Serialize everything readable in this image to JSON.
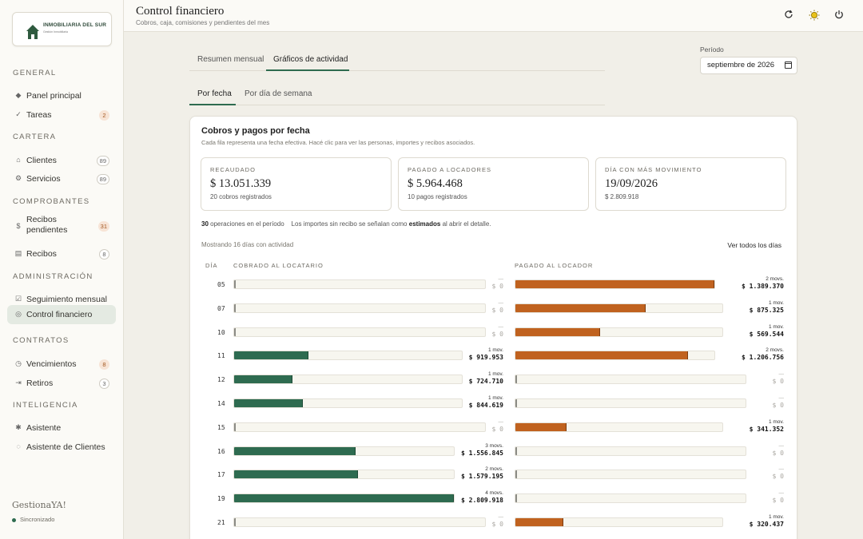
{
  "brand": {
    "logo_title": "INMOBILIARIA DEL SUR",
    "logo_subtitle": "Gestión Inmobiliaria",
    "footer_name": "GestionaYA!",
    "sync_status": "Sincronizado",
    "accent": "#2e6b4f"
  },
  "sidebar": {
    "sections": [
      {
        "title": "GENERAL",
        "items": [
          {
            "label": "Panel principal",
            "icon": "diamond-icon"
          },
          {
            "label": "Tareas",
            "icon": "check-icon",
            "badge": "2",
            "badge_style": "warn"
          }
        ]
      },
      {
        "title": "CARTERA",
        "items": [
          {
            "label": "Clientes",
            "icon": "home-icon",
            "badge": "89",
            "badge_style": "neutral"
          },
          {
            "label": "Servicios",
            "icon": "gear-icon",
            "badge": "89",
            "badge_style": "neutral"
          }
        ]
      },
      {
        "title": "COMPROBANTES",
        "items": [
          {
            "label": "Recibos pendientes",
            "icon": "dollar-icon",
            "badge": "31",
            "badge_style": "warn"
          },
          {
            "label": "Recibos",
            "icon": "receipt-icon",
            "badge": "8",
            "badge_style": "neutral"
          }
        ]
      },
      {
        "title": "ADMINISTRACIÓN",
        "items": [
          {
            "label": "Seguimiento mensual",
            "icon": "checkbox-icon"
          },
          {
            "label": "Control financiero",
            "icon": "target-icon",
            "active": true
          }
        ]
      },
      {
        "title": "CONTRATOS",
        "items": [
          {
            "label": "Vencimientos",
            "icon": "clock-icon",
            "badge": "8",
            "badge_style": "warn"
          },
          {
            "label": "Retiros",
            "icon": "arrow-out-icon",
            "badge": "3",
            "badge_style": "neutral"
          }
        ]
      },
      {
        "title": "INTELIGENCIA",
        "items": [
          {
            "label": "Asistente",
            "icon": "bee-icon"
          },
          {
            "label": "Asistente de Clientes",
            "icon": "chat-icon"
          }
        ]
      }
    ]
  },
  "header": {
    "title": "Control financiero",
    "subtitle": "Cobros, caja, comisiones y pendientes del mes",
    "icons": [
      "refresh-icon",
      "sun-icon",
      "power-icon"
    ]
  },
  "tabs": {
    "main": [
      "Resumen mensual",
      "Gráficos de actividad"
    ],
    "main_active": 1,
    "sub": [
      "Por fecha",
      "Por día de semana"
    ],
    "sub_active": 0
  },
  "periodo": {
    "label": "Período",
    "value": "septiembre de 2026"
  },
  "card": {
    "title": "Cobros y pagos por fecha",
    "description": "Cada fila representa una fecha efectiva. Hacé clic para ver las personas, importes y recibos asociados.",
    "stats": [
      {
        "label": "RECAUDADO",
        "value": "$ 13.051.339",
        "sub": "20 cobros registrados"
      },
      {
        "label": "PAGADO A LOCADORES",
        "value": "$ 5.964.468",
        "sub": "10 pagos registrados"
      },
      {
        "label": "DÍA CON MÁS MOVIMIENTO",
        "value": "19/09/2026",
        "sub": "$ 2.809.918"
      }
    ],
    "ops_count": "30",
    "ops_text": "operaciones en el período",
    "note_prefix": "Los importes sin recibo se señalan como",
    "note_bold": "estimados",
    "note_suffix": "al abrir el detalle.",
    "showing": "Mostrando 16 días con actividad",
    "see_all": "Ver todos los días",
    "col_day": "DÍA",
    "col_cobrado": "COBRADO AL LOCATARIO",
    "col_pagado": "PAGADO AL LOCADOR"
  },
  "chart_data": {
    "type": "bar",
    "categories": [
      "05",
      "07",
      "10",
      "11",
      "12",
      "14",
      "15",
      "16",
      "17",
      "19",
      "21"
    ],
    "series": [
      {
        "name": "COBRADO AL LOCATARIO",
        "color": "#2e6b50",
        "values": [
          0,
          0,
          0,
          919953,
          724710,
          844619,
          0,
          1556845,
          1579195,
          2809918,
          0
        ],
        "labels": [
          "$ 0",
          "$ 0",
          "$ 0",
          "$ 919.953",
          "$ 724.710",
          "$ 844.619",
          "$ 0",
          "$ 1.556.845",
          "$ 1.579.195",
          "$ 2.809.918",
          "$ 0"
        ],
        "movs": [
          "—",
          "—",
          "—",
          "1 mov.",
          "1 mov.",
          "1 mov.",
          "—",
          "3 movs.",
          "2 movs.",
          "4 movs.",
          "—"
        ]
      },
      {
        "name": "PAGADO AL LOCADOR",
        "color": "#c0621f",
        "values": [
          1389370,
          875325,
          569544,
          1206756,
          0,
          0,
          341352,
          0,
          0,
          0,
          320437
        ],
        "labels": [
          "$ 1.389.370",
          "$ 875.325",
          "$ 569.544",
          "$ 1.206.756",
          "$ 0",
          "$ 0",
          "$ 341.352",
          "$ 0",
          "$ 0",
          "$ 0",
          "$ 320.437"
        ],
        "movs": [
          "2 movs.",
          "1 mov.",
          "1 mov.",
          "2 movs.",
          "—",
          "—",
          "1 mov.",
          "—",
          "—",
          "—",
          "1 mov."
        ]
      }
    ]
  }
}
